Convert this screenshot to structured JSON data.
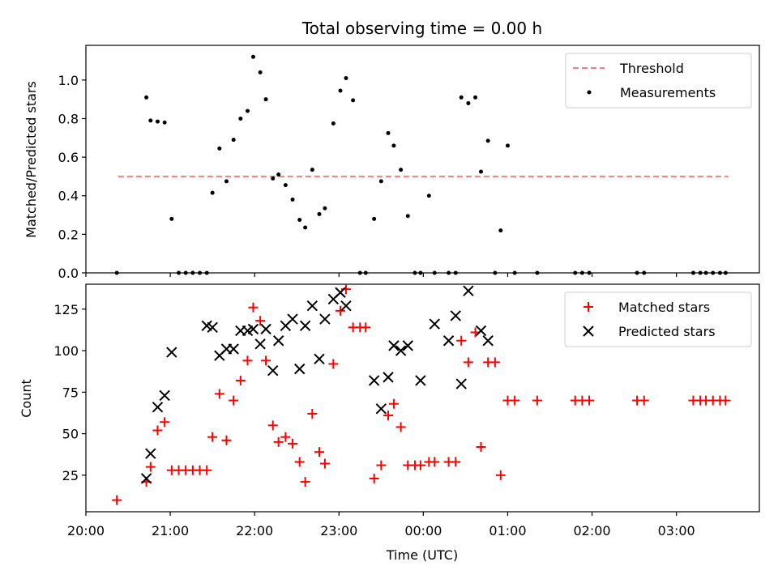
{
  "chart_data": [
    {
      "type": "scatter",
      "title": "Total observing time = 0.00 h",
      "xlabel": "",
      "ylabel": "Matched/Predicted stars",
      "xlim": [
        "20:00",
        "03:59"
      ],
      "ylim": [
        0.0,
        1.18
      ],
      "yticks": [
        "0.0",
        "0.2",
        "0.4",
        "0.6",
        "0.8",
        "1.0"
      ],
      "legend_position": "top-right",
      "series": [
        {
          "name": "Threshold",
          "kind": "dashed-line",
          "color": "#f08080",
          "points": [
            [
              "20:23",
              0.5
            ],
            [
              "03:37",
              0.5
            ]
          ]
        },
        {
          "name": "Measurements",
          "kind": "dots",
          "color": "#000000",
          "points": [
            [
              "20:22",
              0.0
            ],
            [
              "20:43",
              0.91
            ],
            [
              "20:46",
              0.79
            ],
            [
              "20:51",
              0.785
            ],
            [
              "20:56",
              0.78
            ],
            [
              "21:01",
              0.28
            ],
            [
              "21:06",
              0.0
            ],
            [
              "21:11",
              0.0
            ],
            [
              "21:16",
              0.0
            ],
            [
              "21:21",
              0.0
            ],
            [
              "21:26",
              0.0
            ],
            [
              "21:30",
              0.415
            ],
            [
              "21:35",
              0.645
            ],
            [
              "21:40",
              0.475
            ],
            [
              "21:45",
              0.69
            ],
            [
              "21:50",
              0.8
            ],
            [
              "21:55",
              0.84
            ],
            [
              "21:59",
              1.12
            ],
            [
              "22:04",
              1.04
            ],
            [
              "22:08",
              0.9
            ],
            [
              "22:13",
              0.49
            ],
            [
              "22:17",
              0.51
            ],
            [
              "22:22",
              0.455
            ],
            [
              "22:27",
              0.38
            ],
            [
              "22:32",
              0.275
            ],
            [
              "22:36",
              0.235
            ],
            [
              "22:41",
              0.535
            ],
            [
              "22:46",
              0.305
            ],
            [
              "22:50",
              0.335
            ],
            [
              "22:56",
              0.775
            ],
            [
              "23:01",
              0.945
            ],
            [
              "23:05",
              1.01
            ],
            [
              "23:10",
              0.895
            ],
            [
              "23:15",
              0.0
            ],
            [
              "23:19",
              0.0
            ],
            [
              "23:25",
              0.28
            ],
            [
              "23:30",
              0.475
            ],
            [
              "23:35",
              0.725
            ],
            [
              "23:39",
              0.66
            ],
            [
              "23:44",
              0.535
            ],
            [
              "23:49",
              0.295
            ],
            [
              "23:54",
              0.0
            ],
            [
              "23:58",
              0.0
            ],
            [
              "00:04",
              0.4
            ],
            [
              "00:08",
              0.0
            ],
            [
              "00:18",
              0.0
            ],
            [
              "00:23",
              0.0
            ],
            [
              "00:27",
              0.91
            ],
            [
              "00:32",
              0.88
            ],
            [
              "00:37",
              0.91
            ],
            [
              "00:41",
              0.525
            ],
            [
              "00:46",
              0.685
            ],
            [
              "00:51",
              0.0
            ],
            [
              "00:55",
              0.22
            ],
            [
              "01:00",
              0.66
            ],
            [
              "01:05",
              0.0
            ],
            [
              "01:21",
              0.0
            ],
            [
              "01:48",
              0.0
            ],
            [
              "01:53",
              0.0
            ],
            [
              "01:58",
              0.0
            ],
            [
              "02:32",
              0.0
            ],
            [
              "02:37",
              0.0
            ],
            [
              "03:12",
              0.0
            ],
            [
              "03:17",
              0.0
            ],
            [
              "03:21",
              0.0
            ],
            [
              "03:26",
              0.0
            ],
            [
              "03:31",
              0.0
            ],
            [
              "03:35",
              0.0
            ]
          ]
        }
      ]
    },
    {
      "type": "scatter",
      "title": "",
      "xlabel": "Time (UTC)",
      "ylabel": "Count",
      "xlim": [
        "20:00",
        "03:59"
      ],
      "ylim": [
        3,
        140
      ],
      "yticks": [
        "25",
        "50",
        "75",
        "100",
        "125"
      ],
      "xticks": [
        "20:00",
        "21:00",
        "22:00",
        "23:00",
        "00:00",
        "01:00",
        "02:00",
        "03:00"
      ],
      "legend_position": "top-right",
      "series": [
        {
          "name": "Matched stars",
          "kind": "plus",
          "color": "#ff0000",
          "points": [
            [
              "20:22",
              10
            ],
            [
              "20:43",
              21
            ],
            [
              "20:46",
              30
            ],
            [
              "20:51",
              52
            ],
            [
              "20:56",
              57
            ],
            [
              "21:01",
              28
            ],
            [
              "21:06",
              28
            ],
            [
              "21:11",
              28
            ],
            [
              "21:16",
              28
            ],
            [
              "21:21",
              28
            ],
            [
              "21:26",
              28
            ],
            [
              "21:30",
              48
            ],
            [
              "21:35",
              74
            ],
            [
              "21:40",
              46
            ],
            [
              "21:45",
              70
            ],
            [
              "21:50",
              82
            ],
            [
              "21:55",
              94
            ],
            [
              "21:59",
              126
            ],
            [
              "22:04",
              118
            ],
            [
              "22:08",
              94
            ],
            [
              "22:13",
              55
            ],
            [
              "22:17",
              45
            ],
            [
              "22:22",
              48
            ],
            [
              "22:27",
              44
            ],
            [
              "22:32",
              33
            ],
            [
              "22:36",
              21
            ],
            [
              "22:41",
              62
            ],
            [
              "22:46",
              39
            ],
            [
              "22:50",
              32
            ],
            [
              "22:56",
              92
            ],
            [
              "23:01",
              124
            ],
            [
              "23:05",
              137
            ],
            [
              "23:10",
              114
            ],
            [
              "23:15",
              114
            ],
            [
              "23:19",
              114
            ],
            [
              "23:25",
              23
            ],
            [
              "23:30",
              31
            ],
            [
              "23:35",
              61
            ],
            [
              "23:39",
              68
            ],
            [
              "23:44",
              54
            ],
            [
              "23:49",
              31
            ],
            [
              "23:54",
              31
            ],
            [
              "23:58",
              31
            ],
            [
              "00:04",
              33
            ],
            [
              "00:08",
              33
            ],
            [
              "00:18",
              33
            ],
            [
              "00:23",
              33
            ],
            [
              "00:27",
              106
            ],
            [
              "00:32",
              93
            ],
            [
              "00:37",
              111
            ],
            [
              "00:41",
              42
            ],
            [
              "00:46",
              93
            ],
            [
              "00:51",
              93
            ],
            [
              "00:55",
              25
            ],
            [
              "01:00",
              70
            ],
            [
              "01:05",
              70
            ],
            [
              "01:21",
              70
            ],
            [
              "01:48",
              70
            ],
            [
              "01:53",
              70
            ],
            [
              "01:58",
              70
            ],
            [
              "02:32",
              70
            ],
            [
              "02:37",
              70
            ],
            [
              "03:12",
              70
            ],
            [
              "03:17",
              70
            ],
            [
              "03:21",
              70
            ],
            [
              "03:26",
              70
            ],
            [
              "03:31",
              70
            ],
            [
              "03:35",
              70
            ]
          ]
        },
        {
          "name": "Predicted stars",
          "kind": "cross",
          "color": "#000000",
          "points": [
            [
              "20:43",
              23
            ],
            [
              "20:46",
              38
            ],
            [
              "20:51",
              66
            ],
            [
              "20:56",
              73
            ],
            [
              "21:01",
              99
            ],
            [
              "21:26",
              115
            ],
            [
              "21:30",
              114
            ],
            [
              "21:35",
              97
            ],
            [
              "21:40",
              101
            ],
            [
              "21:45",
              101
            ],
            [
              "21:50",
              112
            ],
            [
              "21:55",
              112
            ],
            [
              "21:59",
              113
            ],
            [
              "22:04",
              104
            ],
            [
              "22:08",
              113
            ],
            [
              "22:13",
              88
            ],
            [
              "22:17",
              106
            ],
            [
              "22:22",
              115
            ],
            [
              "22:27",
              119
            ],
            [
              "22:32",
              89
            ],
            [
              "22:36",
              115
            ],
            [
              "22:41",
              127
            ],
            [
              "22:46",
              95
            ],
            [
              "22:50",
              119
            ],
            [
              "22:56",
              131
            ],
            [
              "23:01",
              135
            ],
            [
              "23:05",
              127
            ],
            [
              "23:25",
              82
            ],
            [
              "23:30",
              65
            ],
            [
              "23:35",
              84
            ],
            [
              "23:39",
              103
            ],
            [
              "23:44",
              100
            ],
            [
              "23:49",
              103
            ],
            [
              "23:58",
              82
            ],
            [
              "00:08",
              116
            ],
            [
              "00:18",
              106
            ],
            [
              "00:23",
              121
            ],
            [
              "00:27",
              80
            ],
            [
              "00:32",
              136
            ],
            [
              "00:41",
              112
            ],
            [
              "00:46",
              106
            ]
          ]
        }
      ]
    }
  ]
}
